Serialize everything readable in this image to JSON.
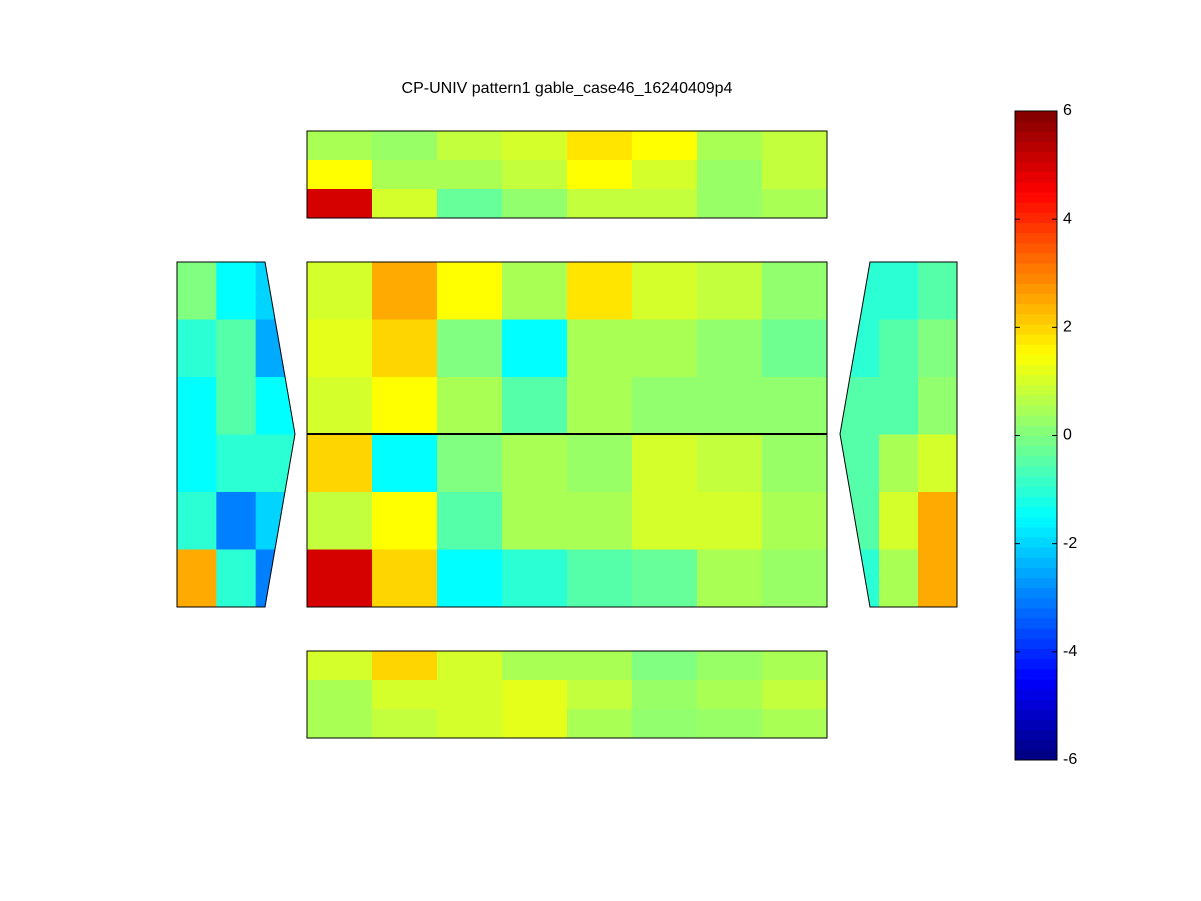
{
  "chart_data": {
    "type": "contour",
    "title": "CP-UNIV pattern1 gable_case46_16240409p4",
    "colormap": "jet",
    "clim": [
      -6,
      6
    ],
    "cticks": [
      -6,
      -4,
      -2,
      0,
      2,
      4,
      6
    ],
    "panels": [
      {
        "z": [
          [
            0.5,
            0.3,
            0.8,
            1,
            1.8,
            1.5,
            0.5,
            0.8
          ],
          [
            1.5,
            0.5,
            0.5,
            0.8,
            1.5,
            1,
            0.3,
            0.8
          ],
          [
            5,
            1,
            -0.3,
            0.2,
            0.8,
            0.8,
            0.3,
            0.5
          ]
        ]
      },
      {
        "z": [
          [
            1,
            2.5,
            1.5,
            0.5,
            1.8,
            1,
            0.8,
            0.2
          ],
          [
            1.2,
            2,
            0,
            -1.5,
            0.5,
            0.5,
            0.2,
            -0.2
          ],
          [
            1,
            1.5,
            0.5,
            -0.5,
            0.5,
            0.2,
            0.2,
            0.2
          ],
          [
            2,
            -1.5,
            0,
            0.5,
            0.3,
            1,
            0.8,
            0.3
          ],
          [
            0.8,
            1.5,
            -0.5,
            0.5,
            0.5,
            1,
            1,
            0.5
          ],
          [
            5,
            2,
            -1.5,
            -1,
            -0.5,
            -0.3,
            0.5,
            0.3
          ]
        ]
      },
      {
        "z": [
          [
            1,
            2,
            1,
            0.5,
            0.5,
            0,
            0.3,
            0.5
          ],
          [
            0.5,
            1,
            1,
            1.2,
            0.8,
            0.3,
            0.5,
            0.8
          ],
          [
            0.5,
            0.8,
            1,
            1.2,
            0.5,
            0.2,
            0.3,
            0.5
          ]
        ]
      },
      {
        "z": [
          [
            0,
            -1.5,
            -2
          ],
          [
            -1,
            -0.5,
            -2.5
          ],
          [
            -1.5,
            -0.5,
            -1.5
          ],
          [
            -1.5,
            -1,
            -1
          ],
          [
            -1,
            -3,
            -2
          ],
          [
            2.5,
            -1,
            -3
          ]
        ]
      },
      {
        "z": [
          [
            -1,
            -1,
            -0.5
          ],
          [
            -1,
            -0.5,
            0
          ],
          [
            -0.5,
            -0.5,
            0.2
          ],
          [
            -0.5,
            0.5,
            1
          ],
          [
            -0.5,
            1,
            2.5
          ],
          [
            -1,
            0.5,
            2.5
          ]
        ]
      }
    ]
  }
}
